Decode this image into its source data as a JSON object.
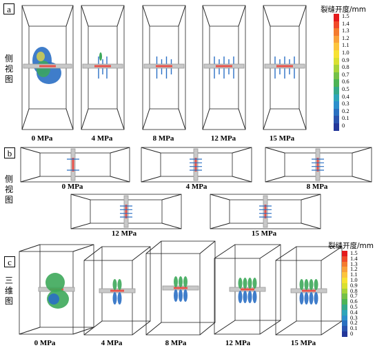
{
  "panels": {
    "a": {
      "label": "a",
      "side_text": [
        "侧",
        "视",
        "图"
      ],
      "captions": [
        "0 MPa",
        "4 MPa",
        "8 MPa",
        "12 MPa",
        "15 MPa"
      ]
    },
    "b": {
      "label": "b",
      "side_text": [
        "侧",
        "视",
        "图"
      ],
      "captions_row1": [
        "0 MPa",
        "4 MPa",
        "8 MPa"
      ],
      "captions_row2": [
        "12 MPa",
        "15 MPa"
      ]
    },
    "c": {
      "label": "c",
      "side_text": [
        "三",
        "维",
        "图"
      ],
      "captions": [
        "0 MPa",
        "4 MPa",
        "8 MPa",
        "12 MPa",
        "15 MPa"
      ]
    }
  },
  "legend": {
    "title": "裂缝开度/mm",
    "ticks": [
      "1.5",
      "1.4",
      "1.3",
      "1.2",
      "1.1",
      "1.0",
      "0.9",
      "0.8",
      "0.7",
      "0.6",
      "0.5",
      "0.4",
      "0.3",
      "0.2",
      "0.1",
      "0"
    ],
    "colors": [
      "#e41a1c",
      "#f04a2a",
      "#f47b2f",
      "#f9a13a",
      "#fcc43d",
      "#f7e233",
      "#d9e030",
      "#a7d33a",
      "#74c147",
      "#4db455",
      "#35a98a",
      "#2ea5b9",
      "#2c8fcc",
      "#2a70c0",
      "#2a53ae",
      "#23379a"
    ]
  },
  "colors": {
    "fracture_dense": "#3da85a",
    "fracture_blue": "#2a6fc4",
    "perforation": "#e8524a",
    "wellbore": "#c8c8c8"
  }
}
